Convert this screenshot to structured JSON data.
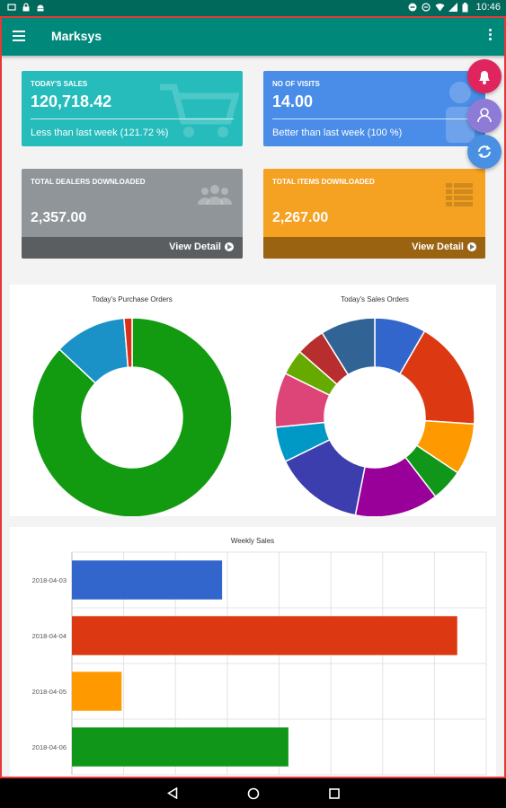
{
  "status_bar": {
    "time": "10:46"
  },
  "app_bar": {
    "title": "Marksys"
  },
  "tiles": {
    "sales": {
      "label": "Today's Sales",
      "value": "120,718.42",
      "note": "Less than last week (121.72 %)",
      "color": "#26bcbc"
    },
    "visits": {
      "label": "No of Visits",
      "value": "14.00",
      "note": "Better than last week (100 %)",
      "color": "#4a8de8"
    },
    "dealers": {
      "label": "Total Dealers Downloaded",
      "value": "2,357.00",
      "link": "View Detail",
      "color": "#8f9599",
      "foot_color": "#5a5e61"
    },
    "items": {
      "label": "Total Items Downloaded",
      "value": "2,267.00",
      "link": "View Detail",
      "color": "#f5a122",
      "foot_color": "#9a6311"
    }
  },
  "fabs": {
    "alarm": {
      "color": "#e0245e",
      "icon": "bell-icon"
    },
    "user": {
      "color": "#8e7bd6",
      "icon": "user-sync-icon"
    },
    "refresh": {
      "color": "#4a90e2",
      "icon": "refresh-icon"
    }
  },
  "chart_data": [
    {
      "type": "pie",
      "title": "Today's Purchase Orders",
      "donut": true,
      "slices": [
        {
          "value": 87,
          "color": "#129a10"
        },
        {
          "value": 11.7,
          "color": "#1a92c8"
        },
        {
          "value": 1.3,
          "color": "#d9301b"
        }
      ]
    },
    {
      "type": "pie",
      "title": "Today's Sales Orders",
      "donut": true,
      "slices": [
        {
          "value": 8,
          "color": "#3366cc"
        },
        {
          "value": 17,
          "color": "#dc3912"
        },
        {
          "value": 8,
          "color": "#ff9900"
        },
        {
          "value": 5,
          "color": "#109618"
        },
        {
          "value": 13,
          "color": "#990099"
        },
        {
          "value": 14,
          "color": "#3b3eac"
        },
        {
          "value": 5.5,
          "color": "#0099c6"
        },
        {
          "value": 8.5,
          "color": "#dd4477"
        },
        {
          "value": 4,
          "color": "#66aa00"
        },
        {
          "value": 4.5,
          "color": "#b82e2e"
        },
        {
          "value": 8.5,
          "color": "#316395"
        }
      ]
    },
    {
      "type": "bar",
      "orientation": "horizontal",
      "title": "Weekly Sales",
      "categories": [
        "2018-04-03",
        "2018-04-04",
        "2018-04-05",
        "2018-04-06"
      ],
      "values": [
        145000,
        372000,
        48000,
        209000
      ],
      "colors": [
        "#3366cc",
        "#dc3912",
        "#ff9900",
        "#109618"
      ],
      "xlim": [
        0,
        400000
      ],
      "grid": true
    }
  ]
}
